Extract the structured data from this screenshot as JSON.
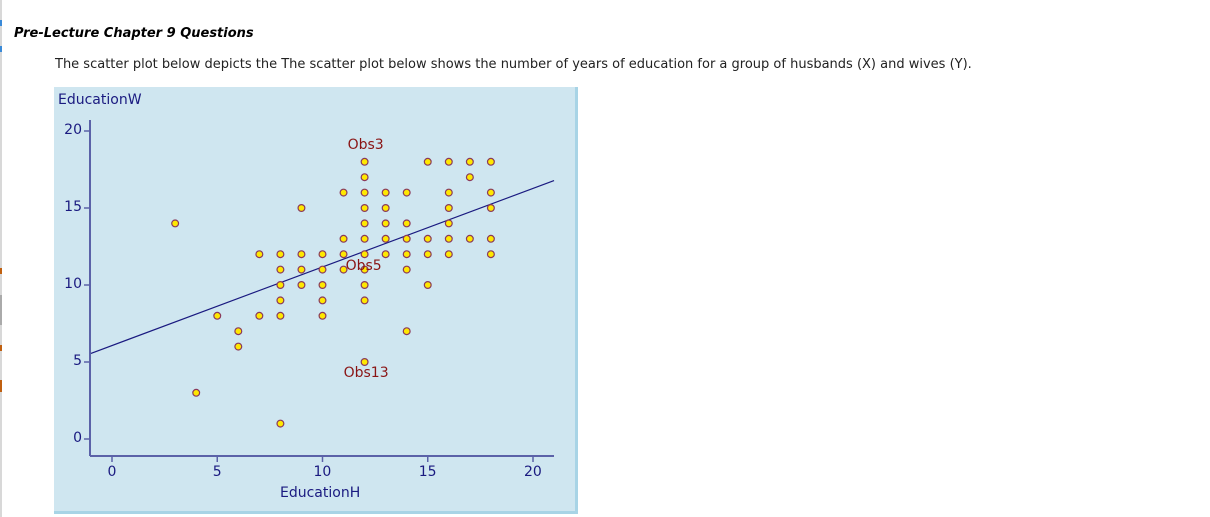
{
  "page": {
    "heading": "Pre-Lecture Chapter 9 Questions",
    "description": "The scatter plot below depicts the The scatter plot below shows the number of years of education for a group of husbands (X) and wives (Y)."
  },
  "colors": {
    "panel_bg": "#cfe6f0",
    "panel_border": "#a8d4e6",
    "axis": "#5b62a8",
    "tick_text": "#1a1a80",
    "point_fill": "#ffe800",
    "point_stroke": "#8a3a5a",
    "regression_line": "#1a1a80",
    "annotation": "#8a1515"
  },
  "chart_data": {
    "type": "scatter",
    "title": "",
    "xlabel": "EducationH",
    "ylabel": "EducationW",
    "xlim": [
      -1,
      21
    ],
    "ylim": [
      -1,
      21
    ],
    "xticks": [
      "0",
      "5",
      "10",
      "15",
      "20"
    ],
    "yticks": [
      "0",
      "5",
      "10",
      "15",
      "20"
    ],
    "grid": false,
    "legend": null,
    "points": [
      [
        12,
        18
      ],
      [
        15,
        18
      ],
      [
        16,
        18
      ],
      [
        17,
        18
      ],
      [
        18,
        18
      ],
      [
        12,
        17
      ],
      [
        17,
        17
      ],
      [
        11,
        16
      ],
      [
        12,
        16
      ],
      [
        13,
        16
      ],
      [
        14,
        16
      ],
      [
        16,
        16
      ],
      [
        18,
        16
      ],
      [
        9,
        15
      ],
      [
        12,
        15
      ],
      [
        13,
        15
      ],
      [
        16,
        15
      ],
      [
        18,
        15
      ],
      [
        3,
        14
      ],
      [
        12,
        14
      ],
      [
        13,
        14
      ],
      [
        14,
        14
      ],
      [
        16,
        14
      ],
      [
        11,
        13
      ],
      [
        12,
        13
      ],
      [
        13,
        13
      ],
      [
        14,
        13
      ],
      [
        15,
        13
      ],
      [
        16,
        13
      ],
      [
        17,
        13
      ],
      [
        18,
        13
      ],
      [
        7,
        12
      ],
      [
        8,
        12
      ],
      [
        9,
        12
      ],
      [
        10,
        12
      ],
      [
        11,
        12
      ],
      [
        12,
        12
      ],
      [
        13,
        12
      ],
      [
        14,
        12
      ],
      [
        15,
        12
      ],
      [
        16,
        12
      ],
      [
        18,
        12
      ],
      [
        8,
        11
      ],
      [
        9,
        11
      ],
      [
        10,
        11
      ],
      [
        11,
        11
      ],
      [
        12,
        11
      ],
      [
        14,
        11
      ],
      [
        8,
        10
      ],
      [
        9,
        10
      ],
      [
        10,
        10
      ],
      [
        12,
        10
      ],
      [
        15,
        10
      ],
      [
        8,
        9
      ],
      [
        10,
        9
      ],
      [
        12,
        9
      ],
      [
        5,
        8
      ],
      [
        7,
        8
      ],
      [
        8,
        8
      ],
      [
        10,
        8
      ],
      [
        6,
        7
      ],
      [
        14,
        7
      ],
      [
        6,
        6
      ],
      [
        12,
        5
      ],
      [
        4,
        3
      ],
      [
        8,
        1
      ]
    ],
    "regression_line": {
      "slope": 0.51,
      "intercept": 6.07,
      "x_range": [
        -1,
        21
      ]
    },
    "annotations": [
      {
        "label": "Obs3",
        "x": 12,
        "y": 18
      },
      {
        "label": "Obs5",
        "x": 12,
        "y": 11
      },
      {
        "label": "Obs13",
        "x": 12,
        "y": 5
      }
    ]
  }
}
